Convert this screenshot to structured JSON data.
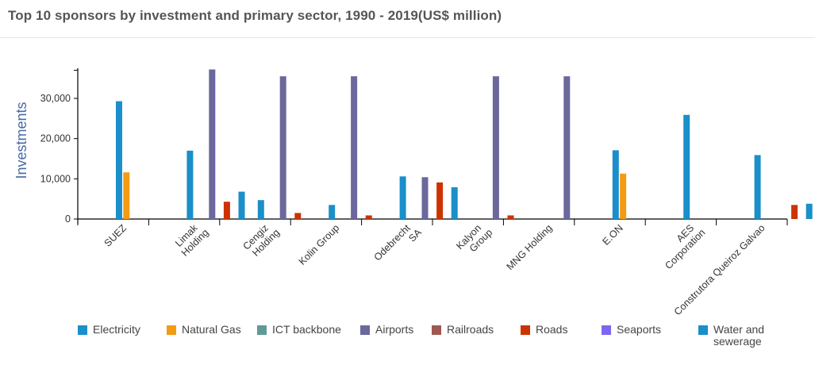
{
  "title": "Top 10 sponsors by investment and primary sector, 1990 - 2019(US$ million)",
  "chart_data": {
    "type": "bar",
    "title": "Top 10 sponsors by investment and primary sector, 1990 - 2019(US$ million)",
    "xlabel": "",
    "ylabel": "Investments",
    "ylim": [
      0,
      37500
    ],
    "yticks": [
      0,
      10000,
      20000,
      30000
    ],
    "ytick_labels": [
      "0",
      "10,000",
      "20,000",
      "30,000"
    ],
    "categories": [
      [
        "SUEZ"
      ],
      [
        "Limak",
        "Holding"
      ],
      [
        "Cengiz",
        "Holding"
      ],
      [
        "Kolin Group"
      ],
      [
        "Odebrecht",
        "SA"
      ],
      [
        "Kalyon",
        "Group"
      ],
      [
        "MNG Holding"
      ],
      [
        "E.ON"
      ],
      [
        "AES",
        "Corporation"
      ],
      [
        "Construtora Queiroz Galvao"
      ]
    ],
    "series": [
      {
        "name": "Electricity",
        "color": "#1a8fc9",
        "values": [
          29300,
          17000,
          4700,
          3500,
          10600,
          0,
          0,
          17100,
          25900,
          15900
        ]
      },
      {
        "name": "Natural Gas",
        "color": "#f59a13",
        "values": [
          11600,
          0,
          0,
          0,
          0,
          0,
          0,
          11300,
          0,
          0
        ]
      },
      {
        "name": "ICT backbone",
        "color": "#5f9a97",
        "values": [
          0,
          0,
          0,
          0,
          0,
          0,
          0,
          0,
          0,
          0
        ]
      },
      {
        "name": "Airports",
        "color": "#6b689c",
        "values": [
          0,
          37200,
          35500,
          35500,
          10400,
          35500,
          35500,
          0,
          0,
          0
        ]
      },
      {
        "name": "Railroads",
        "color": "#9e5a52",
        "values": [
          0,
          0,
          0,
          0,
          0,
          0,
          0,
          0,
          0,
          0
        ]
      },
      {
        "name": "Roads",
        "color": "#cc3300",
        "values": [
          0,
          4300,
          1500,
          900,
          9100,
          900,
          0,
          0,
          0,
          3500
        ]
      },
      {
        "name": "Seaports",
        "color": "#7b68ee",
        "values": [
          0,
          0,
          0,
          0,
          0,
          0,
          0,
          0,
          0,
          0
        ]
      },
      {
        "name": "Water and sewerage",
        "color": "#1a8fc9",
        "values": [
          0,
          6800,
          0,
          0,
          7900,
          0,
          0,
          0,
          0,
          3800
        ]
      }
    ],
    "legend": {
      "position": "bottom",
      "items": [
        {
          "label": "Electricity",
          "color": "#1a8fc9"
        },
        {
          "label": "Natural Gas",
          "color": "#f59a13"
        },
        {
          "label": "ICT backbone",
          "color": "#5f9a97"
        },
        {
          "label": "Airports",
          "color": "#6b689c"
        },
        {
          "label": "Railroads",
          "color": "#9e5a52"
        },
        {
          "label": "Roads",
          "color": "#cc3300"
        },
        {
          "label": "Seaports",
          "color": "#7b68ee"
        },
        {
          "label": "Water and sewerage",
          "color": "#1a8fc9"
        }
      ]
    }
  }
}
